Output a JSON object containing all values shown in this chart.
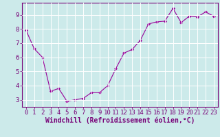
{
  "x": [
    0,
    1,
    2,
    3,
    4,
    5,
    6,
    7,
    8,
    9,
    10,
    11,
    12,
    13,
    14,
    15,
    16,
    17,
    18,
    19,
    20,
    21,
    22,
    23
  ],
  "y": [
    7.9,
    6.6,
    6.0,
    3.6,
    3.8,
    2.9,
    3.0,
    3.1,
    3.5,
    3.5,
    4.0,
    5.2,
    6.3,
    6.55,
    7.2,
    8.35,
    8.5,
    8.55,
    9.45,
    8.45,
    8.9,
    8.85,
    9.2,
    8.9
  ],
  "line_color": "#990099",
  "marker": "D",
  "marker_size": 2.0,
  "bg_color": "#cceaea",
  "grid_color": "#ffffff",
  "xlabel": "Windchill (Refroidissement éolien,°C)",
  "ylim": [
    2.5,
    9.85
  ],
  "xlim": [
    -0.5,
    23.5
  ],
  "yticks": [
    3,
    4,
    5,
    6,
    7,
    8,
    9
  ],
  "xticks": [
    0,
    1,
    2,
    3,
    4,
    5,
    6,
    7,
    8,
    9,
    10,
    11,
    12,
    13,
    14,
    15,
    16,
    17,
    18,
    19,
    20,
    21,
    22,
    23
  ],
  "tick_fontsize": 6.5,
  "xlabel_fontsize": 7.0,
  "spine_color": "#770077",
  "line_width": 0.8
}
